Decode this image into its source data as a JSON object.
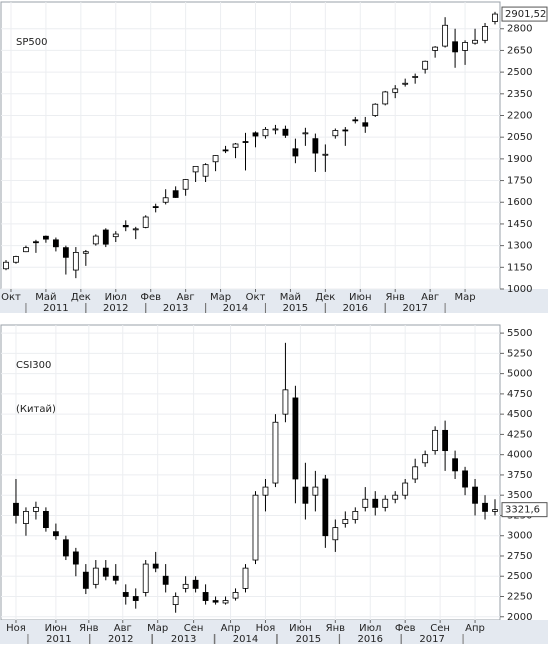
{
  "chart_data": [
    {
      "type": "candlestick",
      "title": "SP500",
      "title_color": "#e0201b",
      "up_color": "#ffffff",
      "down_color": "#000000",
      "grid": true,
      "x": [
        1,
        3,
        5,
        7,
        9,
        11,
        13,
        15,
        17,
        19,
        21,
        23,
        25,
        27,
        29,
        31,
        33,
        35,
        37,
        39,
        41,
        43,
        45,
        47,
        49,
        51,
        53,
        55,
        57,
        59,
        61,
        63,
        65,
        67,
        69,
        71,
        73,
        75,
        77,
        79,
        81,
        83,
        85,
        87,
        89,
        91,
        93,
        95,
        97,
        99
      ],
      "open": [
        1140,
        1185,
        1258,
        1327,
        1365,
        1340,
        1286,
        1131,
        1247,
        1312,
        1408,
        1362,
        1440,
        1410,
        1426,
        1570,
        1600,
        1680,
        1690,
        1810,
        1780,
        1880,
        1962,
        1980,
        2020,
        2080,
        2060,
        2100,
        2105,
        1970,
        2080,
        2040,
        1930,
        2060,
        2100,
        2170,
        2150,
        2200,
        2280,
        2360,
        2420,
        2470,
        2520,
        2650,
        2680,
        2710,
        2650,
        2700,
        2720,
        2850
      ],
      "high": [
        1200,
        1230,
        1300,
        1340,
        1370,
        1356,
        1300,
        1290,
        1270,
        1378,
        1420,
        1400,
        1475,
        1430,
        1510,
        1590,
        1690,
        1710,
        1760,
        1850,
        1870,
        1925,
        1990,
        2010,
        2080,
        2090,
        2120,
        2135,
        2130,
        2040,
        2115,
        2075,
        2000,
        2110,
        2120,
        2190,
        2190,
        2285,
        2370,
        2410,
        2455,
        2490,
        2580,
        2680,
        2880,
        2800,
        2720,
        2800,
        2840,
        2917
      ],
      "low": [
        1130,
        1175,
        1255,
        1250,
        1320,
        1260,
        1100,
        1075,
        1160,
        1300,
        1290,
        1325,
        1400,
        1345,
        1420,
        1530,
        1585,
        1630,
        1645,
        1740,
        1740,
        1815,
        1940,
        1905,
        1820,
        1980,
        2040,
        2070,
        2045,
        1870,
        1990,
        1810,
        1810,
        2040,
        1990,
        2145,
        2080,
        2190,
        2270,
        2320,
        2400,
        2420,
        2490,
        2600,
        2670,
        2530,
        2550,
        2690,
        2700,
        2830
      ],
      "close": [
        1185,
        1225,
        1286,
        1325,
        1345,
        1292,
        1219,
        1253,
        1258,
        1366,
        1310,
        1380,
        1430,
        1416,
        1498,
        1569,
        1631,
        1633,
        1757,
        1848,
        1860,
        1923,
        1960,
        2003,
        2018,
        2058,
        2104,
        2107,
        2063,
        1920,
        2080,
        1940,
        1932,
        2096,
        2099,
        2168,
        2126,
        2278,
        2363,
        2384,
        2423,
        2470,
        2575,
        2673,
        2824,
        2640,
        2705,
        2720,
        2816,
        2901.52
      ],
      "xlim": [
        0,
        100
      ],
      "ylim": [
        1000,
        2985
      ],
      "yticks": [
        1000,
        1150,
        1300,
        1450,
        1600,
        1750,
        1900,
        2050,
        2200,
        2350,
        2500,
        2650,
        2800
      ],
      "xticks": [
        {
          "value": 2,
          "label": "Окт"
        },
        {
          "value": 9,
          "label": "Май"
        },
        {
          "value": 16,
          "label": "Дек"
        },
        {
          "value": 23,
          "label": "Июл"
        },
        {
          "value": 30,
          "label": "Фев"
        },
        {
          "value": 37,
          "label": "Авг"
        },
        {
          "value": 44,
          "label": "Мар"
        },
        {
          "value": 51,
          "label": "Окт"
        },
        {
          "value": 58,
          "label": "Май"
        },
        {
          "value": 65,
          "label": "Дек"
        },
        {
          "value": 72,
          "label": "Июн"
        },
        {
          "value": 79,
          "label": "Янв"
        },
        {
          "value": 86,
          "label": "Авг"
        },
        {
          "value": 93,
          "label": "Мар"
        }
      ],
      "year_ticks": [
        {
          "value": 11,
          "label": "2011"
        },
        {
          "value": 23,
          "label": "2012"
        },
        {
          "value": 35,
          "label": "2013"
        },
        {
          "value": 47,
          "label": "2014"
        },
        {
          "value": 59,
          "label": "2015"
        },
        {
          "value": 71,
          "label": "2016"
        },
        {
          "value": 83,
          "label": "2017"
        }
      ],
      "last_label": {
        "value": 2901.52,
        "label": "2901,52"
      }
    },
    {
      "type": "candlestick",
      "title": "CSI300",
      "subtitle": "(Китай)",
      "title_color": "#e0201b",
      "up_color": "#ffffff",
      "down_color": "#000000",
      "grid": true,
      "x": [
        3,
        5,
        7,
        9,
        11,
        13,
        15,
        17,
        19,
        21,
        23,
        25,
        27,
        29,
        31,
        33,
        35,
        37,
        39,
        41,
        43,
        45,
        47,
        49,
        51,
        53,
        55,
        57,
        59,
        61,
        63,
        65,
        67,
        69,
        71,
        73,
        75,
        77,
        79,
        81,
        83,
        85,
        87,
        89,
        91,
        93,
        95,
        97,
        99
      ],
      "open": [
        3400,
        3150,
        3300,
        3300,
        3050,
        2950,
        2800,
        2550,
        2400,
        2600,
        2500,
        2300,
        2250,
        2300,
        2650,
        2500,
        2150,
        2350,
        2450,
        2300,
        2200,
        2170,
        2230,
        2350,
        2700,
        3500,
        3650,
        4500,
        4700,
        3600,
        3500,
        3700,
        2950,
        3150,
        3200,
        3350,
        3450,
        3350,
        3450,
        3500,
        3700,
        3900,
        4050,
        4300,
        3950,
        3800,
        3600,
        3400,
        3300
      ],
      "high": [
        3700,
        3350,
        3420,
        3350,
        3150,
        3000,
        2850,
        2650,
        2700,
        2700,
        2650,
        2400,
        2350,
        2700,
        2800,
        2650,
        2300,
        2500,
        2500,
        2400,
        2250,
        2250,
        2350,
        2650,
        3550,
        3700,
        4500,
        5380,
        4850,
        3900,
        3800,
        3750,
        3200,
        3300,
        3350,
        3600,
        3550,
        3500,
        3550,
        3700,
        3950,
        4050,
        4350,
        4420,
        4050,
        3850,
        3700,
        3500,
        3450
      ],
      "low": [
        3150,
        3000,
        3200,
        3050,
        2950,
        2700,
        2500,
        2280,
        2350,
        2450,
        2400,
        2150,
        2100,
        2250,
        2550,
        2300,
        2050,
        2300,
        2300,
        2150,
        2150,
        2150,
        2200,
        2300,
        2650,
        3300,
        3600,
        4400,
        3400,
        3200,
        3300,
        2850,
        2800,
        3100,
        3150,
        3300,
        3250,
        3300,
        3400,
        3450,
        3650,
        3850,
        4000,
        3800,
        3700,
        3500,
        3250,
        3200,
        3250
      ],
      "close": [
        3250,
        3300,
        3350,
        3100,
        3000,
        2750,
        2650,
        2350,
        2600,
        2500,
        2450,
        2250,
        2200,
        2650,
        2600,
        2400,
        2250,
        2400,
        2350,
        2200,
        2180,
        2200,
        2300,
        2600,
        3500,
        3600,
        4400,
        4800,
        3700,
        3400,
        3600,
        3000,
        3100,
        3200,
        3300,
        3450,
        3350,
        3450,
        3500,
        3650,
        3850,
        4000,
        4300,
        4050,
        3800,
        3600,
        3400,
        3300,
        3321.6
      ],
      "xlim": [
        0,
        100
      ],
      "ylim": [
        1960,
        5600
      ],
      "yticks": [
        2000,
        2250,
        2500,
        2750,
        3000,
        3250,
        3500,
        3750,
        4000,
        4250,
        4500,
        4750,
        5000,
        5250,
        5500
      ],
      "xticks": [
        {
          "value": 3,
          "label": "Ноя"
        },
        {
          "value": 11,
          "label": "Июн"
        },
        {
          "value": 17.6,
          "label": "Янв"
        },
        {
          "value": 24.4,
          "label": "Авг"
        },
        {
          "value": 31.4,
          "label": "Мар"
        },
        {
          "value": 38.6,
          "label": "Сен"
        },
        {
          "value": 46,
          "label": "Апр"
        },
        {
          "value": 53,
          "label": "Ноя"
        },
        {
          "value": 60,
          "label": "Июн"
        },
        {
          "value": 67,
          "label": "Янв"
        },
        {
          "value": 74,
          "label": "Июл"
        },
        {
          "value": 81,
          "label": "Фев"
        },
        {
          "value": 88,
          "label": "Сен"
        },
        {
          "value": 95,
          "label": "Апр"
        }
      ],
      "year_ticks": [
        {
          "value": 11.6,
          "label": "2011"
        },
        {
          "value": 24,
          "label": "2012"
        },
        {
          "value": 36.6,
          "label": "2013"
        },
        {
          "value": 49,
          "label": "2014"
        },
        {
          "value": 61.6,
          "label": "2015"
        },
        {
          "value": 74,
          "label": "2016"
        },
        {
          "value": 86.4,
          "label": "2017"
        }
      ],
      "last_label": {
        "value": 3321.6,
        "label": "3321,6"
      }
    }
  ]
}
